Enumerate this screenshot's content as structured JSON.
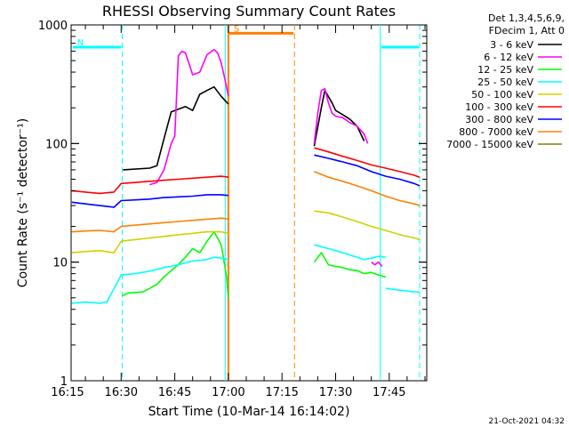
{
  "chart_data": {
    "type": "line",
    "title": "RHESSI Observing Summary Count Rates",
    "xlabel": "Start Time (10-Mar-14 16:14:02)",
    "ylabel": "Count Rate (s⁻¹ detector⁻¹)",
    "ylog": true,
    "ylim": [
      1,
      1000
    ],
    "xlim_minutes": [
      16.0,
      115.5
    ],
    "x_ticks": [
      {
        "label": "16:15",
        "minute": 15
      },
      {
        "label": "16:30",
        "minute": 30
      },
      {
        "label": "16:45",
        "minute": 45
      },
      {
        "label": "17:00",
        "minute": 60
      },
      {
        "label": "17:15",
        "minute": 75
      },
      {
        "label": "17:30",
        "minute": 90
      },
      {
        "label": "17:45",
        "minute": 105
      }
    ],
    "y_ticks": [
      {
        "label": "1",
        "value": 1
      },
      {
        "label": "10",
        "value": 10
      },
      {
        "label": "100",
        "value": 100
      },
      {
        "label": "1000",
        "value": 1000
      }
    ],
    "legend_header": [
      "Det 1,3,4,5,6,9,",
      "FDecim 1, Att 0"
    ],
    "legend_position": "top-right outside",
    "series": [
      {
        "name": "3 - 6 keV",
        "color": "#000000",
        "segments": [
          {
            "x": [
              16.5,
              26,
              30.3,
              30.5,
              38,
              40,
              42,
              44,
              46,
              48,
              50,
              52,
              54,
              56,
              58,
              60
            ],
            "y": [
              null,
              null,
              null,
              60,
              62,
              65,
              110,
              185,
              195,
              205,
              190,
              260,
              280,
              300,
              250,
              215
            ]
          },
          {
            "x": [
              84,
              86,
              87,
              89,
              90,
              92,
              94,
              96,
              98
            ],
            "y": [
              95,
              200,
              280,
              220,
              190,
              175,
              160,
              140,
              105
            ]
          }
        ]
      },
      {
        "name": "6 - 12 keV",
        "color": "#ff00ff",
        "segments": [
          {
            "x": [
              38,
              40,
              42,
              44,
              45,
              46,
              47,
              48,
              50,
              52,
              54,
              56,
              57,
              58,
              59,
              60
            ],
            "y": [
              45,
              47,
              60,
              100,
              115,
              550,
              600,
              580,
              380,
              400,
              560,
              620,
              580,
              480,
              350,
              250
            ]
          },
          {
            "x": [
              84,
              85,
              86,
              87,
              88,
              89,
              90,
              92,
              94,
              96,
              98,
              99
            ],
            "y": [
              100,
              180,
              280,
              290,
              220,
              180,
              170,
              165,
              150,
              140,
              120,
              100
            ]
          },
          {
            "x": [
              100,
              101,
              102,
              103
            ],
            "y": [
              10,
              9.5,
              10,
              9.2
            ]
          }
        ]
      },
      {
        "name": "12 - 25 keV",
        "color": "#00ff00",
        "segments": [
          {
            "x": [
              30.3,
              32,
              36,
              38,
              40,
              42,
              44,
              46,
              48,
              50,
              52,
              54,
              56,
              58,
              59.5,
              60
            ],
            "y": [
              5.2,
              5.5,
              5.6,
              6.0,
              6.5,
              7.5,
              8.5,
              9.5,
              11,
              13,
              12,
              15,
              18,
              14,
              7.5,
              5
            ]
          },
          {
            "x": [
              84,
              86,
              88,
              90,
              92,
              94,
              96,
              98,
              100,
              102,
              104
            ],
            "y": [
              10,
              12,
              9.5,
              9.2,
              9.0,
              8.6,
              8.5,
              8.0,
              8.2,
              7.8,
              7.5
            ]
          }
        ]
      },
      {
        "name": "25 - 50 keV",
        "color": "#00ffff",
        "segments": [
          {
            "x": [
              16.2,
              20,
              24,
              26,
              30,
              34,
              38,
              42,
              46,
              50,
              54,
              56,
              58,
              60
            ],
            "y": [
              4.5,
              4.6,
              4.5,
              4.6,
              7.8,
              8.0,
              8.4,
              9.0,
              9.5,
              10.2,
              10.5,
              11,
              10.8,
              10.5
            ]
          },
          {
            "x": [
              84,
              86,
              88,
              90,
              92,
              94,
              96,
              98,
              100,
              102,
              104
            ],
            "y": [
              14,
              13.5,
              13,
              12.5,
              12,
              11.5,
              11,
              10.5,
              10.8,
              11.2,
              11
            ]
          },
          {
            "x": [
              104,
              106,
              108,
              110,
              112,
              113.5
            ],
            "y": [
              6.0,
              5.9,
              5.8,
              5.7,
              5.6,
              5.6
            ]
          }
        ]
      },
      {
        "name": "50 - 100 keV",
        "color": "#d0d000",
        "segments": [
          {
            "x": [
              16.2,
              20,
              24,
              28,
              30,
              34,
              38,
              42,
              46,
              50,
              54,
              58,
              60
            ],
            "y": [
              12,
              12.3,
              12.5,
              12.0,
              15,
              15.5,
              16,
              16.5,
              17,
              17.5,
              18,
              18,
              17.5
            ]
          },
          {
            "x": [
              84,
              88,
              92,
              96,
              100,
              104,
              108,
              112,
              113.5
            ],
            "y": [
              27,
              26,
              24,
              22,
              20,
              18.5,
              17,
              16,
              15.5
            ]
          }
        ]
      },
      {
        "name": "100 - 300 keV",
        "color": "#ff0000",
        "segments": [
          {
            "x": [
              16.2,
              20,
              24,
              28,
              30,
              34,
              38,
              42,
              46,
              50,
              54,
              58,
              60
            ],
            "y": [
              40,
              39,
              38,
              39,
              46,
              47,
              48,
              49,
              50,
              51,
              52,
              53,
              52
            ]
          },
          {
            "x": [
              84,
              88,
              92,
              96,
              100,
              104,
              108,
              112,
              113.5
            ],
            "y": [
              92,
              85,
              78,
              72,
              66,
              62,
              58,
              54,
              52
            ]
          }
        ]
      },
      {
        "name": "300 - 800 keV",
        "color": "#0000ff",
        "segments": [
          {
            "x": [
              16.2,
              20,
              24,
              28,
              30,
              34,
              38,
              42,
              46,
              50,
              54,
              58,
              60
            ],
            "y": [
              32,
              31,
              30,
              29,
              33,
              33.5,
              34,
              35,
              35.5,
              36,
              37,
              37,
              36.5
            ]
          },
          {
            "x": [
              84,
              88,
              92,
              96,
              100,
              104,
              108,
              112,
              113.5
            ],
            "y": [
              80,
              75,
              70,
              65,
              58,
              53,
              50,
              46,
              44
            ]
          }
        ]
      },
      {
        "name": "800 - 7000 keV",
        "color": "#ff8000",
        "segments": [
          {
            "x": [
              16.2,
              20,
              24,
              28,
              30,
              34,
              38,
              42,
              46,
              50,
              54,
              58,
              60
            ],
            "y": [
              18,
              18.3,
              18.5,
              18,
              20,
              20.5,
              21,
              21.5,
              22,
              22.5,
              23,
              23.5,
              23
            ]
          },
          {
            "x": [
              84,
              88,
              92,
              96,
              100,
              104,
              108,
              112,
              113.5
            ],
            "y": [
              58,
              52,
              48,
              44,
              40,
              36,
              33,
              31,
              30
            ]
          }
        ]
      },
      {
        "name": "7000 - 15000 keV",
        "color": "#808000",
        "segments": []
      }
    ],
    "intervals": [
      {
        "label": "N",
        "color": "#00ffff",
        "span": [
          16.2,
          30.3
        ],
        "level_y": 650
      },
      {
        "label": "",
        "color": "#00ffff",
        "span": [
          102.5,
          113.5
        ],
        "level_y": 650
      },
      {
        "label": "S",
        "color": "#ff8000",
        "span": [
          60.0,
          78.5
        ],
        "level_y": 850
      }
    ],
    "vertical_markers": [
      {
        "minute": 30.3,
        "color": "#00ffff",
        "style": "dashed"
      },
      {
        "minute": 59.1,
        "color": "#00ffff",
        "style": "solid"
      },
      {
        "minute": 60.0,
        "color": "#ff8000",
        "style": "solid"
      },
      {
        "minute": 78.5,
        "color": "#ff8000",
        "style": "dashed"
      },
      {
        "minute": 102.5,
        "color": "#00ffff",
        "style": "solid"
      },
      {
        "minute": 113.5,
        "color": "#00ffff",
        "style": "dashed"
      }
    ]
  },
  "footer": {
    "timestamp": "21-Oct-2021 04:32"
  }
}
